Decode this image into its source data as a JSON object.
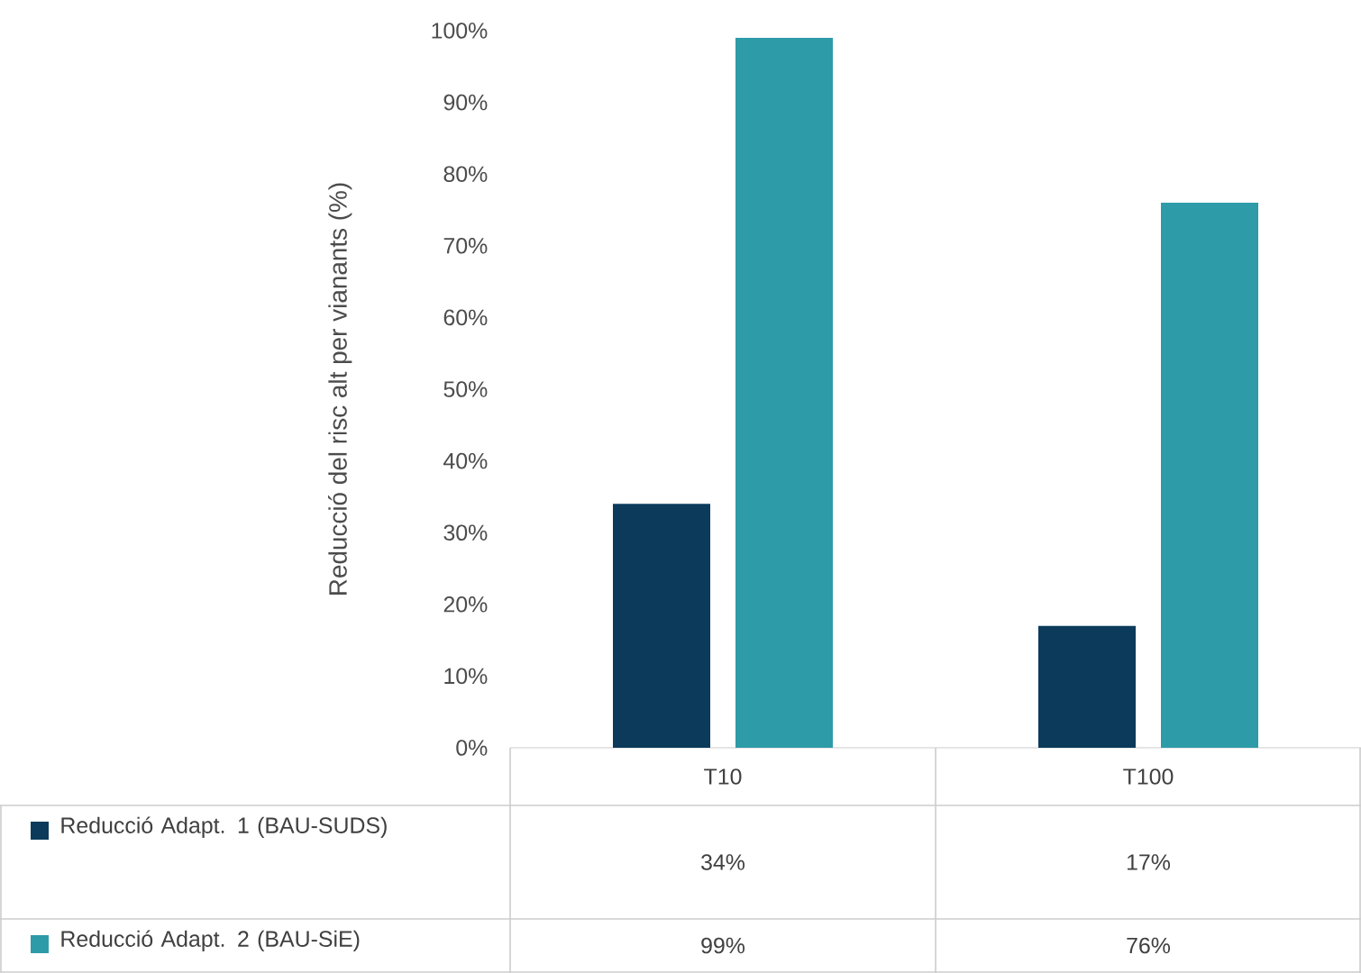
{
  "chart_data": {
    "type": "bar",
    "ylabel": "Reducció del risc alt per vianants (%)",
    "categories": [
      "T10",
      "T100"
    ],
    "series": [
      {
        "name": "Reducció Adapt. 1 (BAU-SUDS)",
        "color": "#0b3a5b",
        "values": [
          34,
          17
        ],
        "value_labels": [
          "34%",
          "17%"
        ]
      },
      {
        "name": "Reducció Adapt. 2 (BAU-SiE)",
        "color": "#2e9ba8",
        "values": [
          99,
          76
        ],
        "value_labels": [
          "99%",
          "76%"
        ]
      }
    ],
    "ylim": [
      0,
      100
    ],
    "yticks": [
      {
        "value": 0,
        "label": "0%"
      },
      {
        "value": 10,
        "label": "10%"
      },
      {
        "value": 20,
        "label": "20%"
      },
      {
        "value": 30,
        "label": "30%"
      },
      {
        "value": 40,
        "label": "40%"
      },
      {
        "value": 50,
        "label": "50%"
      },
      {
        "value": 60,
        "label": "60%"
      },
      {
        "value": 70,
        "label": "70%"
      },
      {
        "value": 80,
        "label": "80%"
      },
      {
        "value": 90,
        "label": "90%"
      },
      {
        "value": 100,
        "label": "100%"
      }
    ],
    "legend": "bottom"
  }
}
